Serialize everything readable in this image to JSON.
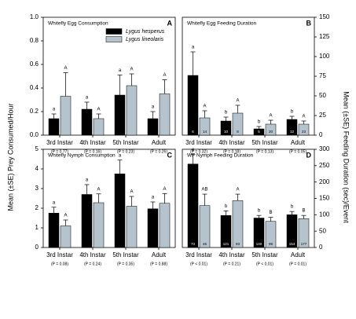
{
  "ylabel_left": "Mean (±SE) Prey Consumed/Hour",
  "ylabel_right": "Mean (±SE) Feeding Duration (sec)/Event",
  "chart_data": [
    {
      "type": "bar",
      "title": "Whitefly Egg Consumption",
      "panel_label": "A",
      "axis_side": "left",
      "legend": "upper right",
      "categories": [
        "3rd Instar",
        "4th Instar",
        "5th Instar",
        "Adult"
      ],
      "p_values": [
        "(P = 0.77)",
        "(P = 0.16)",
        "(P = 0.23)",
        "(P = 0.26)"
      ],
      "ylim": [
        0,
        1
      ],
      "yticks": [
        {
          "value": 0,
          "label": "0.0"
        },
        0.2,
        0.4,
        0.6,
        0.8,
        {
          "value": 1,
          "label": "1.0"
        }
      ],
      "series": [
        {
          "name": "Lygus hesperus",
          "color": "#000000",
          "values": [
            0.14,
            0.22,
            0.34,
            0.14
          ],
          "errors": [
            0.04,
            0.06,
            0.17,
            0.06
          ],
          "letters": [
            "a",
            "a",
            "a",
            "a"
          ]
        },
        {
          "name": "Lygus lineolaris",
          "color": "#b4c3cc",
          "values": [
            0.33,
            0.14,
            0.42,
            0.35
          ],
          "errors": [
            0.2,
            0.04,
            0.1,
            0.12
          ],
          "letters": [
            "A",
            "A",
            "A",
            "A"
          ]
        }
      ]
    },
    {
      "type": "bar",
      "title": "Whitefly Egg Feeding Duration",
      "panel_label": "B",
      "axis_side": "right",
      "categories": [
        "3rd Instar",
        "4th Instar",
        "5th Instar",
        "Adult"
      ],
      "p_values": [
        "(P = 0.32)",
        "(P = 0.18)",
        "(P = 0.13)",
        "(P = 0.05)"
      ],
      "ylim": [
        0,
        150
      ],
      "yticks": [
        0,
        25,
        50,
        75,
        100,
        125,
        150
      ],
      "series": [
        {
          "name": "Lygus hesperus",
          "color": "#000000",
          "values": [
            76,
            18,
            8,
            20
          ],
          "errors": [
            30,
            5,
            3,
            4
          ],
          "letters": [
            "a",
            "b",
            "b",
            "b"
          ],
          "n": [
            "6",
            "10",
            "5",
            "12"
          ]
        },
        {
          "name": "Lygus lineolaris",
          "color": "#b4c3cc",
          "values": [
            22,
            28,
            14,
            14
          ],
          "errors": [
            9,
            10,
            5,
            4
          ],
          "letters": [
            "A",
            "A",
            "A",
            "A"
          ],
          "n": [
            "14",
            "8",
            "20",
            "23"
          ]
        }
      ]
    },
    {
      "type": "bar",
      "title": "Whitefly Nymph Consumption",
      "panel_label": "C",
      "axis_side": "left",
      "categories": [
        "3rd Instar",
        "4th Instar",
        "5th Instar",
        "Adult"
      ],
      "p_values": [
        "(P = 0.08)",
        "(P = 0.24)",
        "(P = 0.35)",
        "(P = 0.88)"
      ],
      "ylim": [
        0,
        5
      ],
      "yticks": [
        0,
        1,
        2,
        3,
        4,
        5
      ],
      "series": [
        {
          "name": "Lygus hesperus",
          "color": "#000000",
          "values": [
            1.75,
            2.7,
            3.75,
            1.97
          ],
          "errors": [
            0.3,
            0.5,
            0.7,
            0.35
          ],
          "letters": [
            "a",
            "a",
            "a",
            "a"
          ]
        },
        {
          "name": "Lygus lineolaris",
          "color": "#b4c3cc",
          "values": [
            1.1,
            2.28,
            2.1,
            2.25
          ],
          "errors": [
            0.3,
            0.45,
            0.5,
            0.5
          ],
          "letters": [
            "A",
            "A",
            "A",
            "A"
          ]
        }
      ]
    },
    {
      "type": "bar",
      "title": "WF Nymph Feeding Duration",
      "panel_label": "D",
      "axis_side": "right",
      "categories": [
        "3rd Instar",
        "4th Instar",
        "5th Instar",
        "Adult"
      ],
      "p_values": [
        "(P < 0.01)",
        "(P = 0.21)",
        "(P < 0.01)",
        "(P = 0.01)"
      ],
      "ylim": [
        0,
        300
      ],
      "yticks": [
        0,
        50,
        100,
        150,
        200,
        250,
        300
      ],
      "series": [
        {
          "name": "Lygus hesperus",
          "color": "#000000",
          "values": [
            255,
            98,
            90,
            100
          ],
          "errors": [
            30,
            14,
            8,
            10
          ],
          "letters": [
            "a",
            "b",
            "b",
            "b"
          ],
          "n": [
            "73",
            "121",
            "140",
            "154"
          ]
        },
        {
          "name": "Lygus lineolaris",
          "color": "#b4c3cc",
          "values": [
            128,
            143,
            80,
            88
          ],
          "errors": [
            35,
            20,
            12,
            10
          ],
          "letters": [
            "AB",
            "A",
            "B",
            "B"
          ],
          "n": [
            "46",
            "93",
            "99",
            "177"
          ]
        }
      ]
    }
  ]
}
